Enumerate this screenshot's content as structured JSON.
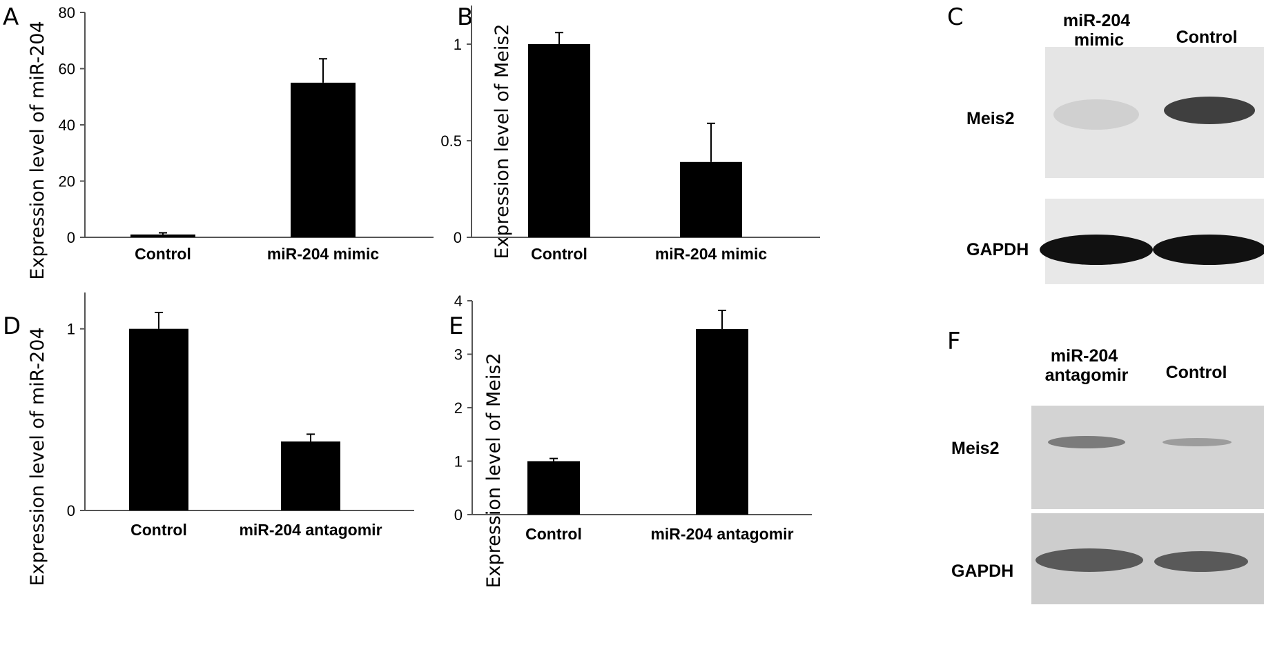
{
  "panels": {
    "A": "A",
    "B": "B",
    "C": "C",
    "D": "D",
    "E": "E",
    "F": "F"
  },
  "chart_data": [
    {
      "panel": "A",
      "type": "bar",
      "ylabel": "Expression level of miR-204",
      "ylim": [
        0,
        80
      ],
      "yticks": [
        0,
        20,
        40,
        60,
        80
      ],
      "categories": [
        "Control",
        "miR-204 mimic"
      ],
      "values": [
        1,
        55
      ],
      "errors": [
        0.6,
        8.5
      ]
    },
    {
      "panel": "B",
      "type": "bar",
      "ylabel": "Expression level of Meis2",
      "ylim": [
        0,
        1.2
      ],
      "yticks": [
        0,
        0.5,
        1
      ],
      "ytick_labels": [
        "0",
        "0.5",
        "1"
      ],
      "categories": [
        "Control",
        "miR-204 mimic"
      ],
      "values": [
        1.0,
        0.39
      ],
      "errors": [
        0.06,
        0.2
      ]
    },
    {
      "panel": "D",
      "type": "bar",
      "ylabel": "Expression level of miR-204",
      "ylim": [
        0,
        1.2
      ],
      "yticks": [
        0,
        1
      ],
      "categories": [
        "Control",
        "miR-204 antagomir"
      ],
      "values": [
        1.0,
        0.38
      ],
      "errors": [
        0.09,
        0.04
      ]
    },
    {
      "panel": "E",
      "type": "bar",
      "ylabel": "Expression level of Meis2",
      "ylim": [
        0,
        4
      ],
      "yticks": [
        0,
        1,
        2,
        3,
        4
      ],
      "categories": [
        "Control",
        "miR-204  antagomir"
      ],
      "values": [
        1.0,
        3.47
      ],
      "errors": [
        0.05,
        0.35
      ]
    }
  ],
  "blots": [
    {
      "panel": "C",
      "lane_labels": [
        "miR-204\nmimic",
        "Control"
      ],
      "rows": [
        {
          "label": "Meis2",
          "intensity": [
            0.15,
            0.85
          ]
        },
        {
          "label": "GAPDH",
          "intensity": [
            1.0,
            1.0
          ]
        }
      ]
    },
    {
      "panel": "F",
      "lane_labels": [
        "miR-204\nantagomir",
        "Control"
      ],
      "rows": [
        {
          "label": "Meis2",
          "intensity": [
            0.55,
            0.2
          ]
        },
        {
          "label": "GAPDH",
          "intensity": [
            0.7,
            0.7
          ]
        }
      ]
    }
  ],
  "colors": {
    "bar": "#000000",
    "axis": "#555555",
    "blot_bg_C": "#e4e4e4",
    "blot_bg_F": "#cfcfcf"
  }
}
